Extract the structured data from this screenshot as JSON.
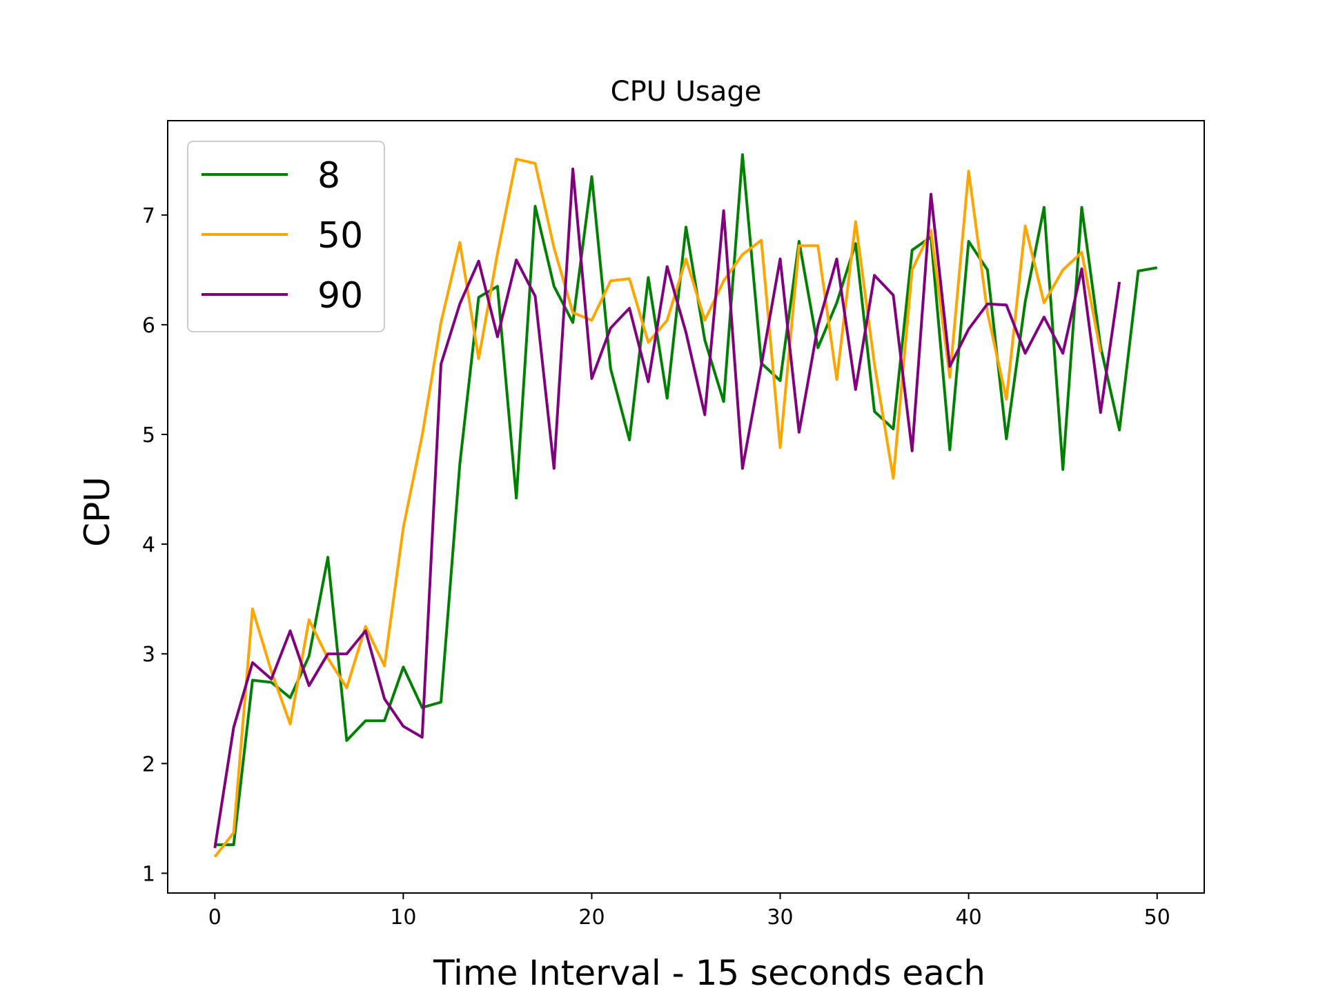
{
  "chart_data": {
    "type": "line",
    "title": "CPU Usage",
    "xlabel": "Time Interval - 15 seconds each",
    "ylabel": "CPU",
    "xlim": [
      -2.5,
      52.5
    ],
    "ylim": [
      0.82,
      7.86
    ],
    "xticks": [
      0,
      10,
      20,
      30,
      40,
      50
    ],
    "yticks": [
      1,
      2,
      3,
      4,
      5,
      6,
      7
    ],
    "grid": false,
    "legend_position": "upper-left",
    "series": [
      {
        "name": "8",
        "color": "#008000",
        "x": [
          0,
          1,
          2,
          3,
          4,
          5,
          6,
          7,
          8,
          9,
          10,
          11,
          12,
          13,
          14,
          15,
          16,
          17,
          18,
          19,
          20,
          21,
          22,
          23,
          24,
          25,
          26,
          27,
          28,
          29,
          30,
          31,
          32,
          33,
          34,
          35,
          36,
          37,
          38,
          39,
          40,
          41,
          42,
          43,
          44,
          45,
          46,
          47,
          48,
          49,
          50
        ],
        "y": [
          1.26,
          1.26,
          2.76,
          2.74,
          2.6,
          2.98,
          3.88,
          2.21,
          2.39,
          2.39,
          2.88,
          2.51,
          2.56,
          4.73,
          6.25,
          6.35,
          4.42,
          7.08,
          6.35,
          6.02,
          7.35,
          5.6,
          4.95,
          6.43,
          5.33,
          6.89,
          5.86,
          5.3,
          7.55,
          5.65,
          5.49,
          6.76,
          5.79,
          6.2,
          6.74,
          5.21,
          5.05,
          6.68,
          6.8,
          4.86,
          6.76,
          6.5,
          4.96,
          6.21,
          7.07,
          4.68,
          7.07,
          5.8,
          5.04,
          6.49,
          6.52
        ]
      },
      {
        "name": "50",
        "color": "#ffa500",
        "x": [
          0,
          1,
          2,
          3,
          4,
          5,
          6,
          7,
          8,
          9,
          10,
          11,
          12,
          13,
          14,
          15,
          16,
          17,
          18,
          19,
          20,
          21,
          22,
          23,
          24,
          25,
          26,
          27,
          28,
          29,
          30,
          31,
          32,
          33,
          34,
          35,
          36,
          37,
          38,
          39,
          40,
          41,
          42,
          43,
          44,
          45,
          46,
          47
        ],
        "y": [
          1.15,
          1.37,
          3.41,
          2.84,
          2.36,
          3.31,
          2.96,
          2.69,
          3.25,
          2.89,
          4.15,
          4.99,
          6.02,
          6.75,
          5.69,
          6.65,
          7.51,
          7.47,
          6.7,
          6.11,
          6.04,
          6.4,
          6.42,
          5.84,
          6.04,
          6.6,
          6.04,
          6.4,
          6.64,
          6.77,
          4.88,
          6.72,
          6.72,
          5.5,
          6.94,
          5.64,
          4.6,
          6.5,
          6.86,
          5.52,
          7.4,
          6.11,
          5.32,
          6.9,
          6.2,
          6.5,
          6.66,
          5.75
        ]
      },
      {
        "name": "90",
        "color": "#800080",
        "x": [
          0,
          1,
          2,
          3,
          4,
          5,
          6,
          7,
          8,
          9,
          10,
          11,
          12,
          13,
          14,
          15,
          16,
          17,
          18,
          19,
          20,
          21,
          22,
          23,
          24,
          25,
          26,
          27,
          28,
          29,
          30,
          31,
          32,
          33,
          34,
          35,
          36,
          37,
          38,
          39,
          40,
          41,
          42,
          43,
          44,
          45,
          46,
          47,
          48
        ],
        "y": [
          1.23,
          2.33,
          2.92,
          2.77,
          3.21,
          2.71,
          3.0,
          3.0,
          3.21,
          2.59,
          2.34,
          2.24,
          5.64,
          6.19,
          6.58,
          5.89,
          6.59,
          6.26,
          4.69,
          7.42,
          5.51,
          5.97,
          6.15,
          5.48,
          6.53,
          5.93,
          5.18,
          7.04,
          4.69,
          5.63,
          6.6,
          5.02,
          5.99,
          6.6,
          5.41,
          6.45,
          6.27,
          4.85,
          7.19,
          5.62,
          5.96,
          6.19,
          6.18,
          5.74,
          6.07,
          5.74,
          6.51,
          5.2,
          6.39
        ]
      }
    ]
  }
}
